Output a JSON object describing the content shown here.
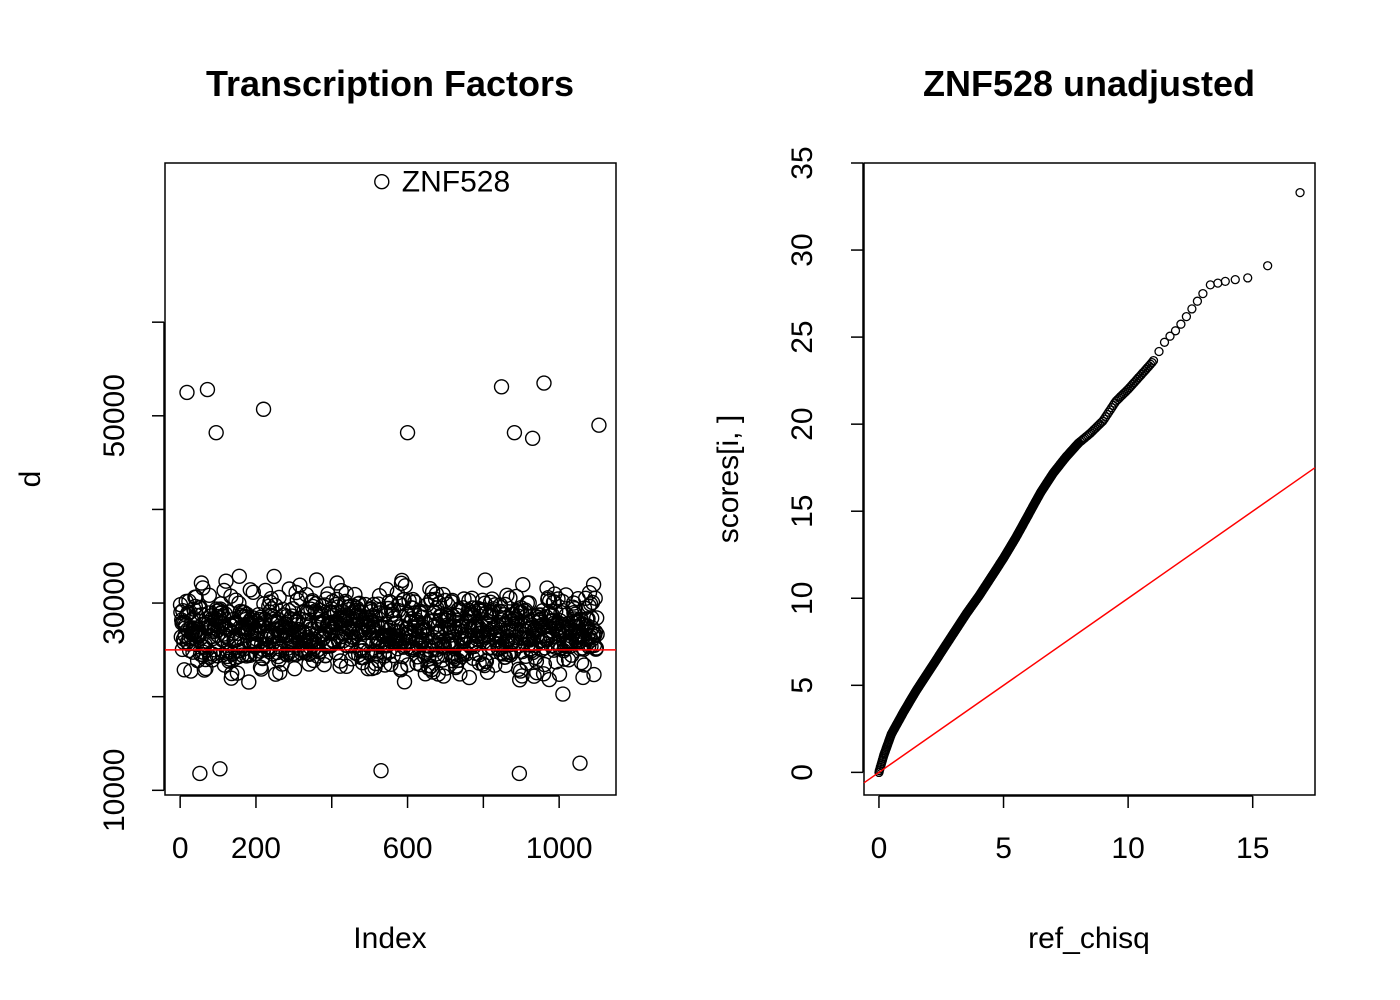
{
  "chart_data": [
    {
      "type": "scatter",
      "title": "Transcription Factors",
      "xlabel": "Index",
      "ylabel": "d",
      "xlim": [
        -40,
        1150
      ],
      "ylim": [
        9500,
        77000
      ],
      "x_ticks": [
        0,
        200,
        400,
        600,
        800,
        1000
      ],
      "x_tick_labels": [
        "0",
        "200",
        "",
        "600",
        "",
        "1000"
      ],
      "y_ticks": [
        10000,
        20000,
        30000,
        40000,
        50000,
        60000
      ],
      "y_tick_labels": [
        "10000",
        "",
        "30000",
        "",
        "50000",
        ""
      ],
      "n_points": 1100,
      "hline": {
        "y": 25000,
        "color": "#ff0000"
      },
      "annotation": {
        "text": "ZNF528",
        "x": 532,
        "y": 75000
      },
      "highlighted_points": [
        {
          "x": 532,
          "y": 75000
        },
        {
          "x": 18,
          "y": 52500
        },
        {
          "x": 72,
          "y": 52800
        },
        {
          "x": 220,
          "y": 50700
        },
        {
          "x": 848,
          "y": 53100
        },
        {
          "x": 960,
          "y": 53500
        },
        {
          "x": 1105,
          "y": 49000
        },
        {
          "x": 95,
          "y": 48200
        },
        {
          "x": 600,
          "y": 48200
        },
        {
          "x": 930,
          "y": 47600
        },
        {
          "x": 882,
          "y": 48200
        },
        {
          "x": 52,
          "y": 11800
        },
        {
          "x": 105,
          "y": 12300
        },
        {
          "x": 530,
          "y": 12100
        },
        {
          "x": 895,
          "y": 11800
        },
        {
          "x": 1055,
          "y": 12900
        }
      ],
      "marker_color": "#000000"
    },
    {
      "type": "scatter",
      "title": "ZNF528 unadjusted",
      "xlabel": "ref_chisq",
      "ylabel": "scores[i, ]",
      "xlim": [
        -0.6,
        17.5
      ],
      "ylim": [
        -1.3,
        35
      ],
      "x_ticks": [
        0,
        5,
        10,
        15
      ],
      "x_tick_labels": [
        "0",
        "5",
        "10",
        "15"
      ],
      "y_ticks": [
        0,
        5,
        10,
        15,
        20,
        25,
        30,
        35
      ],
      "y_tick_labels": [
        "0",
        "5",
        "10",
        "15",
        "20",
        "25",
        "30",
        "35"
      ],
      "curve_points": [
        [
          0,
          0
        ],
        [
          0.2,
          1
        ],
        [
          0.5,
          2.2
        ],
        [
          1,
          3.5
        ],
        [
          1.5,
          4.7
        ],
        [
          2,
          5.8
        ],
        [
          2.5,
          6.9
        ],
        [
          3,
          8.0
        ],
        [
          3.5,
          9.1
        ],
        [
          4,
          10.1
        ],
        [
          4.5,
          11.2
        ],
        [
          5,
          12.3
        ],
        [
          5.5,
          13.5
        ],
        [
          6,
          14.8
        ],
        [
          6.5,
          16.1
        ],
        [
          7,
          17.2
        ],
        [
          7.5,
          18.1
        ],
        [
          8,
          18.9
        ],
        [
          8.5,
          19.5
        ],
        [
          9,
          20.2
        ],
        [
          9.5,
          21.3
        ],
        [
          10,
          22.0
        ],
        [
          10.5,
          22.8
        ],
        [
          11,
          23.6
        ],
        [
          11.5,
          24.8
        ],
        [
          12,
          25.5
        ],
        [
          12.5,
          26.5
        ],
        [
          13,
          27.5
        ]
      ],
      "tail_points": [
        [
          13.3,
          28.0
        ],
        [
          13.6,
          28.1
        ],
        [
          13.9,
          28.2
        ],
        [
          14.3,
          28.3
        ],
        [
          14.8,
          28.4
        ],
        [
          15.6,
          29.1
        ],
        [
          16.9,
          33.3
        ]
      ],
      "abline": {
        "slope": 1,
        "intercept": 0,
        "color": "#ff0000"
      },
      "marker_color": "#000000"
    }
  ]
}
